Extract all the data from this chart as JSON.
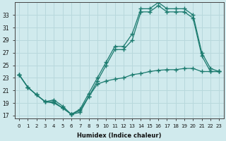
{
  "xlabel": "Humidex (Indice chaleur)",
  "background_color": "#d0eaed",
  "line_color": "#1a7a6e",
  "grid_color": "#b8d8dc",
  "xlim": [
    -0.5,
    23.5
  ],
  "ylim": [
    16.5,
    35.0
  ],
  "yticks": [
    17,
    19,
    21,
    23,
    25,
    27,
    29,
    31,
    33
  ],
  "xticks": [
    0,
    1,
    2,
    3,
    4,
    5,
    6,
    7,
    8,
    9,
    10,
    11,
    12,
    13,
    14,
    15,
    16,
    17,
    18,
    19,
    20,
    21,
    22,
    23
  ],
  "series1_x": [
    0,
    1,
    2,
    3,
    4,
    5,
    6,
    7,
    8,
    9,
    10,
    11,
    12,
    13,
    14,
    15,
    16,
    17,
    18,
    19,
    20,
    21,
    22,
    23
  ],
  "series1_y": [
    23.5,
    21.5,
    20.3,
    19.2,
    19.0,
    18.2,
    17.2,
    17.5,
    20.0,
    22.5,
    25.0,
    27.5,
    27.5,
    29.0,
    33.5,
    33.5,
    34.5,
    33.5,
    33.5,
    33.5,
    32.5,
    26.5,
    24.0,
    24.0
  ],
  "series2_x": [
    0,
    1,
    2,
    3,
    4,
    5,
    6,
    7,
    8,
    9,
    10,
    11,
    12,
    13,
    14,
    15,
    16,
    17,
    18,
    19,
    20,
    21,
    22,
    23
  ],
  "series2_y": [
    23.5,
    21.5,
    20.3,
    19.2,
    19.5,
    18.5,
    17.2,
    18.0,
    20.5,
    23.0,
    25.5,
    28.0,
    28.0,
    30.0,
    34.0,
    34.0,
    35.0,
    34.0,
    34.0,
    34.0,
    33.0,
    27.0,
    24.5,
    24.0
  ],
  "series3_x": [
    0,
    1,
    2,
    3,
    4,
    5,
    6,
    7,
    8,
    9,
    10,
    11,
    12,
    13,
    14,
    15,
    16,
    17,
    18,
    19,
    20,
    21,
    22,
    23
  ],
  "series3_y": [
    23.5,
    21.5,
    20.3,
    19.2,
    19.2,
    18.2,
    17.2,
    17.8,
    20.0,
    22.0,
    22.5,
    22.8,
    23.0,
    23.5,
    23.7,
    24.0,
    24.2,
    24.3,
    24.3,
    24.5,
    24.5,
    24.0,
    24.0,
    24.0
  ]
}
